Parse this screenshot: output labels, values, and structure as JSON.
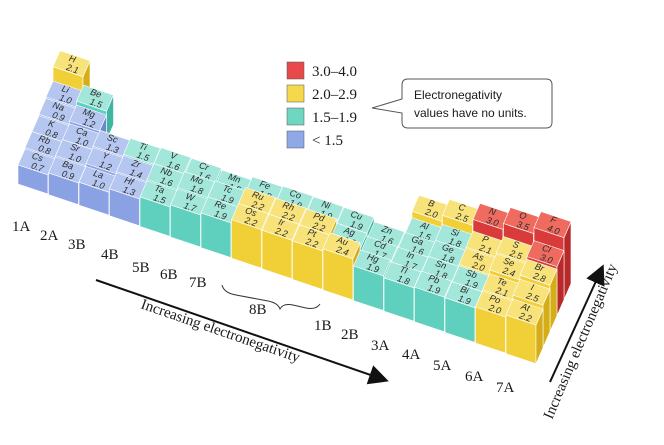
{
  "legend": [
    {
      "label": "3.0–4.0",
      "color": "#e8494a"
    },
    {
      "label": "2.0–2.9",
      "color": "#f5d94a"
    },
    {
      "label": "1.5–1.9",
      "color": "#6fd6c2"
    },
    {
      "label": "< 1.5",
      "color": "#8ea8e8"
    }
  ],
  "note": {
    "line1": "Electronegativity",
    "line2": "values have no units."
  },
  "axis_horizontal": "Increasing electronegativity",
  "axis_vertical": "Increasing electronegativity",
  "groups": [
    "1A",
    "2A",
    "3B",
    "4B",
    "5B",
    "6B",
    "7B",
    "8B",
    "1B",
    "2B",
    "3A",
    "4A",
    "5A",
    "6A",
    "7A"
  ],
  "elements": [
    {
      "s": "H",
      "v": "2.1",
      "c": "yellow"
    },
    {
      "s": "Li",
      "v": "1.0",
      "c": "blue"
    },
    {
      "s": "Be",
      "v": "1.5",
      "c": "teal"
    },
    {
      "s": "Na",
      "v": "0.9",
      "c": "blue"
    },
    {
      "s": "Mg",
      "v": "1.2",
      "c": "blue"
    },
    {
      "s": "K",
      "v": "0.8",
      "c": "blue"
    },
    {
      "s": "Ca",
      "v": "1.0",
      "c": "blue"
    },
    {
      "s": "Sc",
      "v": "1.3",
      "c": "blue"
    },
    {
      "s": "Rb",
      "v": "0.8",
      "c": "blue"
    },
    {
      "s": "Sr",
      "v": "1.0",
      "c": "blue"
    },
    {
      "s": "Y",
      "v": "1.2",
      "c": "blue"
    },
    {
      "s": "Cs",
      "v": "0.7",
      "c": "blue"
    },
    {
      "s": "Ba",
      "v": "0.9",
      "c": "blue"
    },
    {
      "s": "La",
      "v": "1.0",
      "c": "blue"
    },
    {
      "s": "Ti",
      "v": "1.5",
      "c": "teal"
    },
    {
      "s": "V",
      "v": "1.6",
      "c": "teal"
    },
    {
      "s": "Cr",
      "v": "1.6",
      "c": "teal"
    },
    {
      "s": "Mn",
      "v": "1.5",
      "c": "teal"
    },
    {
      "s": "Fe",
      "v": "1.8",
      "c": "teal"
    },
    {
      "s": "Co",
      "v": "1.9",
      "c": "teal"
    },
    {
      "s": "Ni",
      "v": "1.9",
      "c": "teal"
    },
    {
      "s": "Cu",
      "v": "1.9",
      "c": "teal"
    },
    {
      "s": "Zn",
      "v": "1.6",
      "c": "teal"
    },
    {
      "s": "Zr",
      "v": "1.4",
      "c": "blue"
    },
    {
      "s": "Nb",
      "v": "1.6",
      "c": "teal"
    },
    {
      "s": "Mo",
      "v": "1.8",
      "c": "teal"
    },
    {
      "s": "Tc",
      "v": "1.9",
      "c": "teal"
    },
    {
      "s": "Ru",
      "v": "2.2",
      "c": "yellow"
    },
    {
      "s": "Rh",
      "v": "2.2",
      "c": "yellow"
    },
    {
      "s": "Pd",
      "v": "2.2",
      "c": "yellow"
    },
    {
      "s": "Ag",
      "v": "1.9",
      "c": "teal"
    },
    {
      "s": "Cd",
      "v": "1.7",
      "c": "teal"
    },
    {
      "s": "Hf",
      "v": "1.3",
      "c": "blue"
    },
    {
      "s": "Ta",
      "v": "1.5",
      "c": "teal"
    },
    {
      "s": "W",
      "v": "1.7",
      "c": "teal"
    },
    {
      "s": "Re",
      "v": "1.9",
      "c": "teal"
    },
    {
      "s": "Os",
      "v": "2.2",
      "c": "yellow"
    },
    {
      "s": "Ir",
      "v": "2.2",
      "c": "yellow"
    },
    {
      "s": "Pt",
      "v": "2.2",
      "c": "yellow"
    },
    {
      "s": "Au",
      "v": "2.4",
      "c": "yellow"
    },
    {
      "s": "Hg",
      "v": "1.9",
      "c": "teal"
    },
    {
      "s": "B",
      "v": "2.0",
      "c": "yellow"
    },
    {
      "s": "C",
      "v": "2.5",
      "c": "yellow"
    },
    {
      "s": "N",
      "v": "3.0",
      "c": "red"
    },
    {
      "s": "O",
      "v": "3.5",
      "c": "red"
    },
    {
      "s": "F",
      "v": "4.0",
      "c": "red"
    },
    {
      "s": "Al",
      "v": "1.5",
      "c": "teal"
    },
    {
      "s": "Si",
      "v": "1.8",
      "c": "teal"
    },
    {
      "s": "P",
      "v": "2.1",
      "c": "yellow"
    },
    {
      "s": "S",
      "v": "2.5",
      "c": "yellow"
    },
    {
      "s": "Cl",
      "v": "3.0",
      "c": "red"
    },
    {
      "s": "Ga",
      "v": "1.6",
      "c": "teal"
    },
    {
      "s": "Ge",
      "v": "1.8",
      "c": "teal"
    },
    {
      "s": "As",
      "v": "2.0",
      "c": "yellow"
    },
    {
      "s": "Se",
      "v": "2.4",
      "c": "yellow"
    },
    {
      "s": "Br",
      "v": "2.8",
      "c": "yellow"
    },
    {
      "s": "In",
      "v": "1.7",
      "c": "teal"
    },
    {
      "s": "Sn",
      "v": "1.8",
      "c": "teal"
    },
    {
      "s": "Sb",
      "v": "1.9",
      "c": "teal"
    },
    {
      "s": "Te",
      "v": "2.1",
      "c": "yellow"
    },
    {
      "s": "I",
      "v": "2.5",
      "c": "yellow"
    },
    {
      "s": "Tl",
      "v": "1.8",
      "c": "teal"
    },
    {
      "s": "Pb",
      "v": "1.9",
      "c": "teal"
    },
    {
      "s": "Bi",
      "v": "1.9",
      "c": "teal"
    },
    {
      "s": "Po",
      "v": "2.0",
      "c": "yellow"
    },
    {
      "s": "At",
      "v": "2.2",
      "c": "yellow"
    }
  ]
}
